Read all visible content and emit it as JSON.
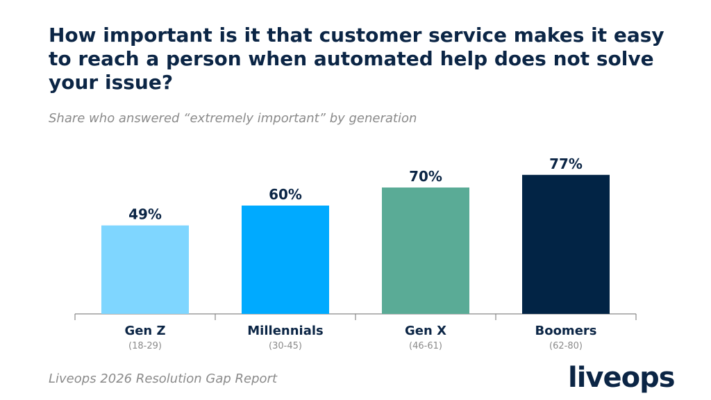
{
  "header": {
    "title": "How important is it that customer service makes it easy to reach a person when automated help does not solve your issue?",
    "subtitle": "Share who answered “extremely important” by generation"
  },
  "footer": {
    "source": "Liveops 2026 Resolution Gap Report",
    "logo_text": "liveops"
  },
  "chart_data": {
    "type": "bar",
    "title": "How important is it that customer service makes it easy to reach a person when automated help does not solve your issue?",
    "subtitle": "Share who answered “extremely important” by generation",
    "categories": [
      "Gen Z",
      "Millennials",
      "Gen X",
      "Boomers"
    ],
    "category_sublabels": [
      "(18-29)",
      "(30-45)",
      "(46-61)",
      "(62-80)"
    ],
    "values": [
      49,
      60,
      70,
      77
    ],
    "value_labels": [
      "49%",
      "60%",
      "70%",
      "77%"
    ],
    "colors": [
      "#7fd6ff",
      "#00aaff",
      "#5aab96",
      "#022445"
    ],
    "ylim": [
      0,
      100
    ],
    "grid": false,
    "legend": "none"
  },
  "colors": {
    "title": "#0b2545",
    "muted": "#8a8a8a",
    "axis": "#888888"
  }
}
